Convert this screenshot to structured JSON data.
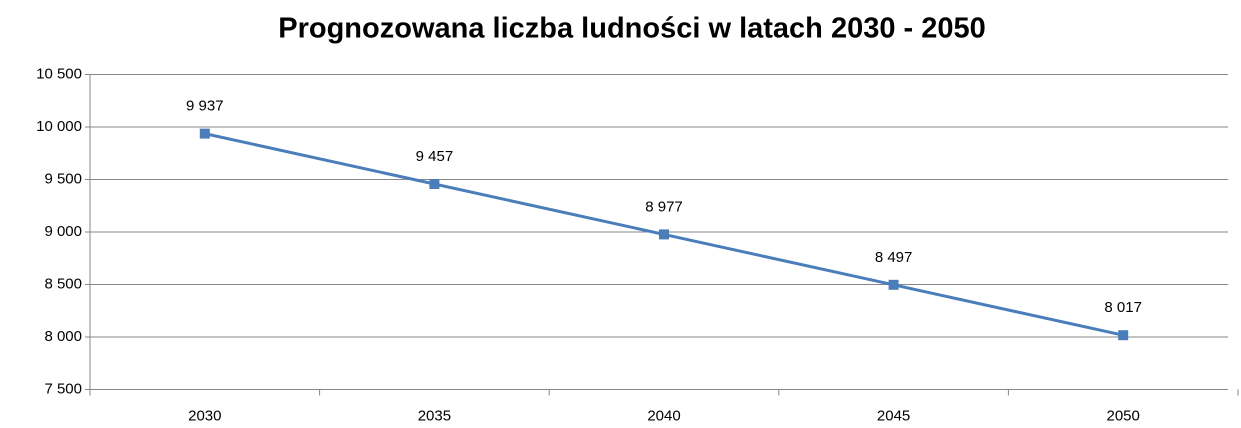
{
  "chart_data": {
    "type": "line",
    "title": "Prognozowana liczba ludności w latach 2030 - 2050",
    "categories": [
      "2030",
      "2035",
      "2040",
      "2045",
      "2050"
    ],
    "series": [
      {
        "name": "Prognozowana liczba ludności",
        "color": "#4a7ebb",
        "values": [
          9937,
          9457,
          8977,
          8497,
          8017
        ],
        "value_labels": [
          "9 937",
          "9 457",
          "8 977",
          "8 497",
          "8 017"
        ]
      }
    ],
    "ylim": [
      7500,
      10500
    ],
    "yticks": [
      {
        "value": 7500,
        "label": "7 500"
      },
      {
        "value": 8000,
        "label": "8 000"
      },
      {
        "value": 8500,
        "label": "8 500"
      },
      {
        "value": 9000,
        "label": "9 000"
      },
      {
        "value": 9500,
        "label": "9 500"
      },
      {
        "value": 10000,
        "label": "10 000"
      },
      {
        "value": 10500,
        "label": "10 500"
      }
    ],
    "grid": true
  }
}
